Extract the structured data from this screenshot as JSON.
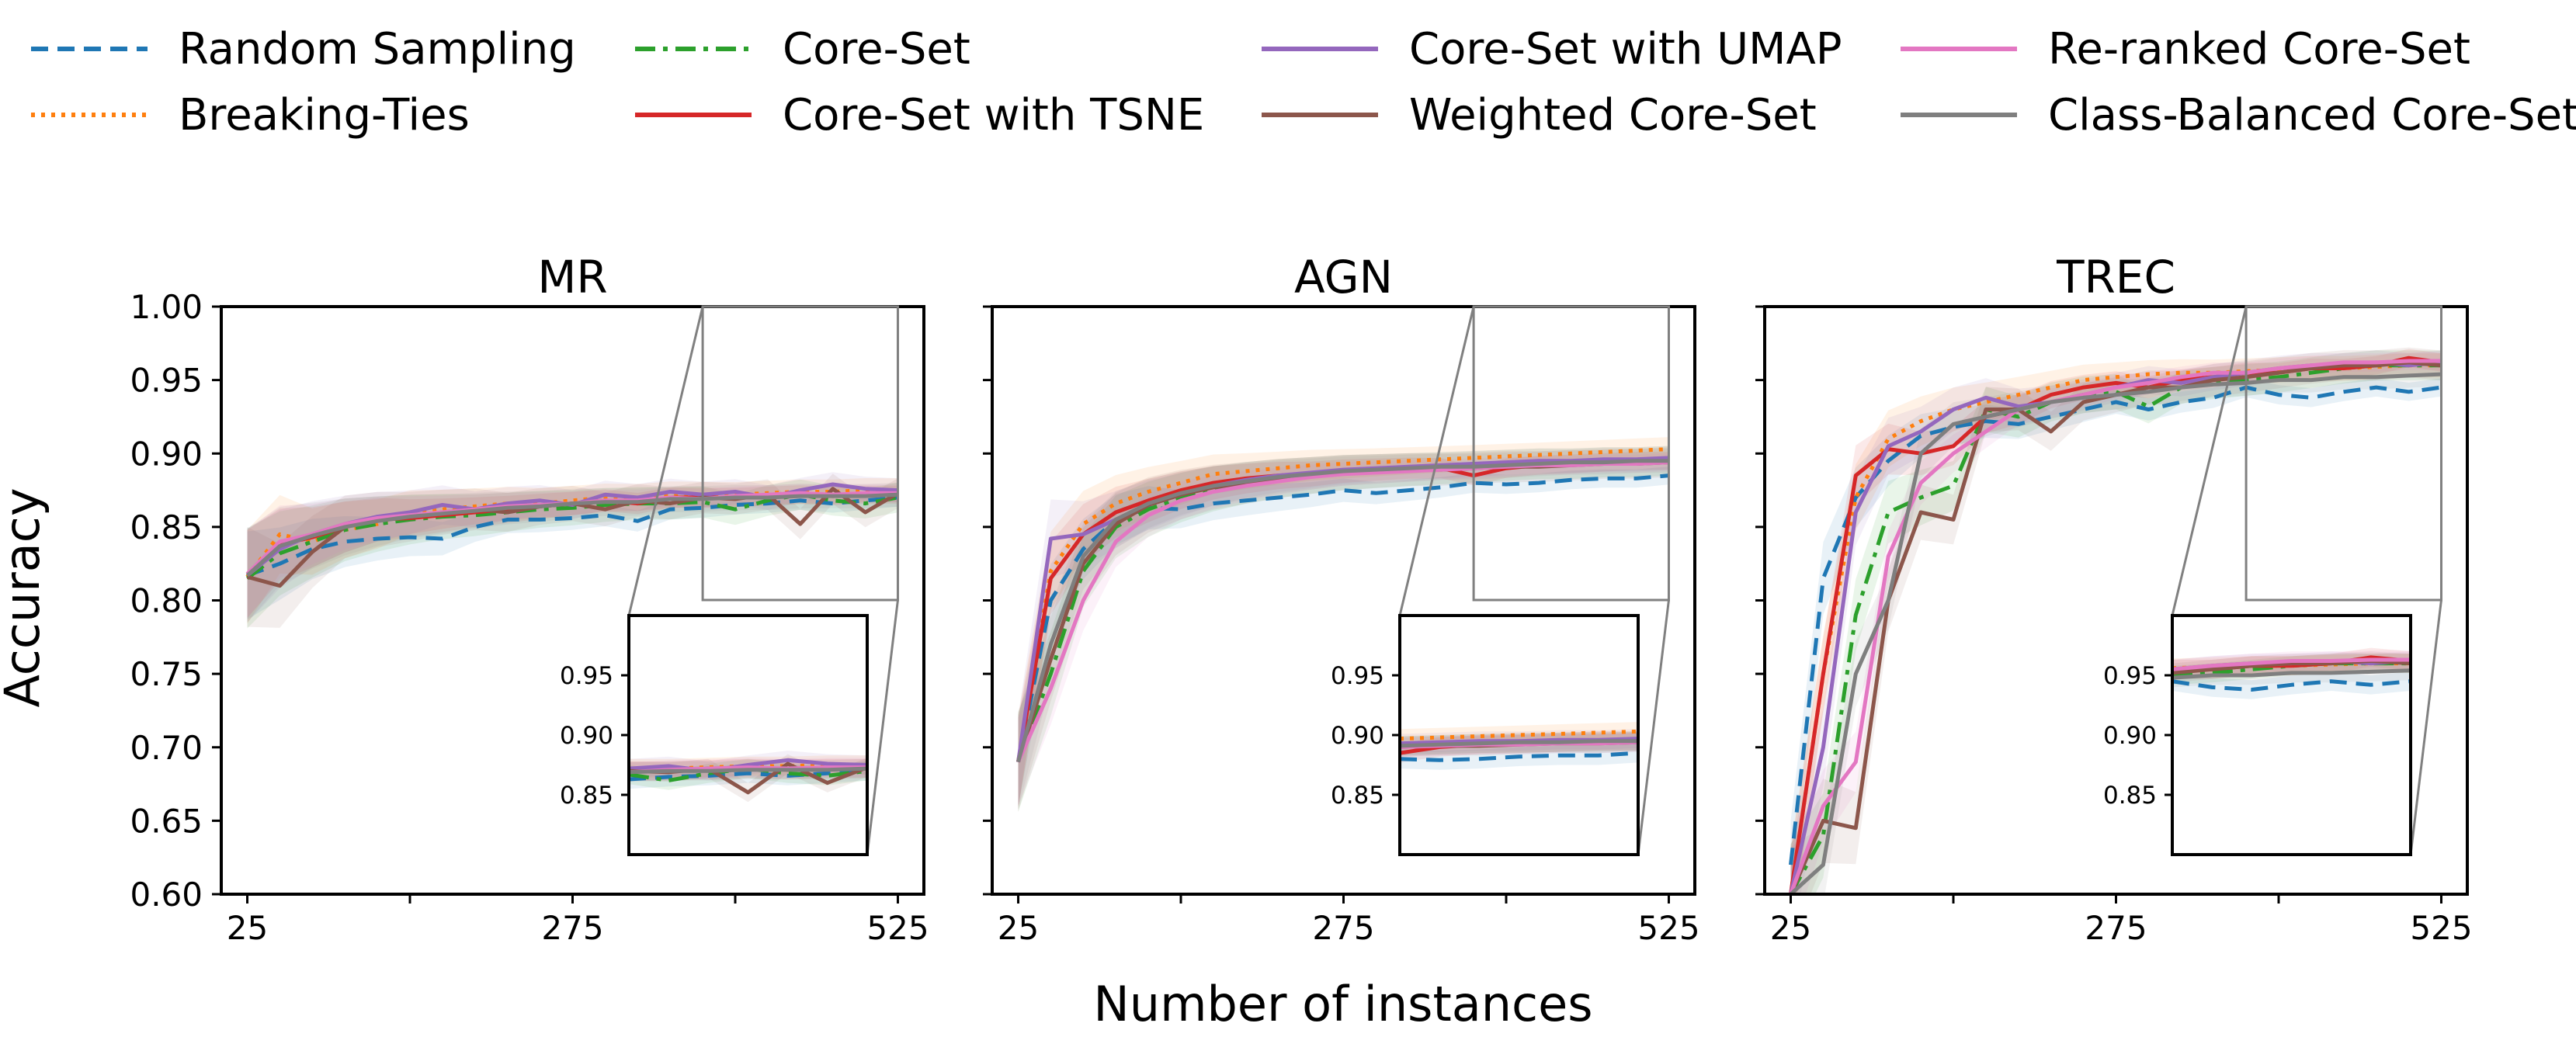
{
  "figure": {
    "xlabel": "Number of instances",
    "ylabel": "Accuracy"
  },
  "legend": {
    "placement": "top",
    "entries": [
      {
        "name": "Random Sampling",
        "color": "#1f77b4",
        "style": "dashed"
      },
      {
        "name": "Breaking-Ties",
        "color": "#ff7f0e",
        "style": "dotted"
      },
      {
        "name": "Core-Set",
        "color": "#2ca02c",
        "style": "dashdot"
      },
      {
        "name": "Core-Set with TSNE",
        "color": "#d62728",
        "style": "solid"
      },
      {
        "name": "Core-Set with UMAP",
        "color": "#9467bd",
        "style": "solid"
      },
      {
        "name": "Weighted Core-Set",
        "color": "#8c564b",
        "style": "solid"
      },
      {
        "name": "Re-ranked Core-Set",
        "color": "#e377c2",
        "style": "solid"
      },
      {
        "name": "Class-Balanced Core-Set",
        "color": "#7f7f7f",
        "style": "solid"
      }
    ]
  },
  "chart_data": [
    {
      "type": "line",
      "title": "MR",
      "xlim": [
        25,
        525
      ],
      "ylim": [
        0.6,
        1.0
      ],
      "xticks": [
        25,
        275,
        525
      ],
      "yticks": [
        0.6,
        0.65,
        0.7,
        0.75,
        0.8,
        0.85,
        0.9,
        0.95,
        1.0
      ],
      "ytick_labels": [
        "0.60",
        "0.65",
        "0.70",
        "0.75",
        "0.80",
        "0.85",
        "0.90",
        "0.95",
        "1.00"
      ],
      "x": [
        25,
        50,
        75,
        100,
        125,
        150,
        175,
        200,
        225,
        250,
        275,
        300,
        325,
        350,
        375,
        400,
        425,
        450,
        475,
        500,
        525
      ],
      "series": [
        {
          "name": "Random Sampling",
          "values": [
            0.817,
            0.825,
            0.835,
            0.84,
            0.842,
            0.843,
            0.842,
            0.85,
            0.855,
            0.855,
            0.856,
            0.858,
            0.854,
            0.862,
            0.863,
            0.865,
            0.866,
            0.868,
            0.866,
            0.868,
            0.87
          ]
        },
        {
          "name": "Breaking-Ties",
          "values": [
            0.816,
            0.845,
            0.84,
            0.848,
            0.852,
            0.86,
            0.862,
            0.864,
            0.866,
            0.866,
            0.868,
            0.87,
            0.87,
            0.872,
            0.872,
            0.872,
            0.873,
            0.874,
            0.874,
            0.875,
            0.875
          ]
        },
        {
          "name": "Core-Set",
          "values": [
            0.815,
            0.832,
            0.84,
            0.848,
            0.852,
            0.855,
            0.857,
            0.858,
            0.86,
            0.862,
            0.863,
            0.865,
            0.866,
            0.866,
            0.867,
            0.862,
            0.868,
            0.872,
            0.868,
            0.866,
            0.87
          ]
        },
        {
          "name": "Core-Set with TSNE",
          "values": [
            0.818,
            0.838,
            0.843,
            0.85,
            0.855,
            0.856,
            0.858,
            0.86,
            0.862,
            0.864,
            0.866,
            0.868,
            0.866,
            0.87,
            0.87,
            0.87,
            0.871,
            0.872,
            0.871,
            0.872,
            0.872
          ]
        },
        {
          "name": "Core-Set with UMAP",
          "values": [
            0.817,
            0.835,
            0.845,
            0.852,
            0.857,
            0.86,
            0.865,
            0.862,
            0.866,
            0.868,
            0.865,
            0.872,
            0.87,
            0.874,
            0.872,
            0.874,
            0.87,
            0.875,
            0.879,
            0.876,
            0.875
          ]
        },
        {
          "name": "Weighted Core-Set",
          "values": [
            0.816,
            0.81,
            0.833,
            0.85,
            0.855,
            0.857,
            0.86,
            0.862,
            0.86,
            0.864,
            0.866,
            0.862,
            0.868,
            0.866,
            0.87,
            0.869,
            0.872,
            0.852,
            0.876,
            0.86,
            0.873
          ]
        },
        {
          "name": "Re-ranked Core-Set",
          "values": [
            0.818,
            0.84,
            0.845,
            0.852,
            0.856,
            0.858,
            0.86,
            0.862,
            0.864,
            0.865,
            0.866,
            0.868,
            0.868,
            0.87,
            0.869,
            0.871,
            0.872,
            0.873,
            0.872,
            0.873,
            0.873
          ]
        },
        {
          "name": "Class-Balanced Core-Set",
          "values": [
            0.817,
            0.837,
            0.844,
            0.85,
            0.854,
            0.857,
            0.859,
            0.861,
            0.863,
            0.864,
            0.866,
            0.867,
            0.867,
            0.869,
            0.869,
            0.87,
            0.87,
            0.871,
            0.871,
            0.871,
            0.872
          ]
        }
      ],
      "inset": {
        "xlim": [
          375,
          525
        ],
        "ylim": [
          0.8,
          1.0
        ],
        "yticks": [
          0.85,
          0.9,
          0.95
        ],
        "ytick_labels": [
          "0.85",
          "0.90",
          "0.95"
        ]
      }
    },
    {
      "type": "line",
      "title": "AGN",
      "xlim": [
        25,
        525
      ],
      "ylim": [
        0.6,
        1.0
      ],
      "xticks": [
        25,
        275,
        525
      ],
      "yticks": [
        0.6,
        0.65,
        0.7,
        0.75,
        0.8,
        0.85,
        0.9,
        0.95,
        1.0
      ],
      "ytick_labels": [],
      "x": [
        25,
        50,
        75,
        100,
        125,
        150,
        175,
        200,
        225,
        250,
        275,
        300,
        325,
        350,
        375,
        400,
        425,
        450,
        475,
        500,
        525
      ],
      "series": [
        {
          "name": "Random Sampling",
          "values": [
            0.69,
            0.8,
            0.835,
            0.855,
            0.863,
            0.862,
            0.866,
            0.868,
            0.87,
            0.872,
            0.875,
            0.873,
            0.875,
            0.877,
            0.88,
            0.879,
            0.88,
            0.882,
            0.883,
            0.883,
            0.885
          ]
        },
        {
          "name": "Breaking-Ties",
          "values": [
            0.69,
            0.82,
            0.852,
            0.866,
            0.874,
            0.88,
            0.886,
            0.888,
            0.89,
            0.892,
            0.893,
            0.894,
            0.895,
            0.896,
            0.897,
            0.898,
            0.899,
            0.9,
            0.901,
            0.902,
            0.903
          ]
        },
        {
          "name": "Core-Set",
          "values": [
            0.69,
            0.75,
            0.82,
            0.85,
            0.862,
            0.87,
            0.876,
            0.88,
            0.883,
            0.885,
            0.887,
            0.888,
            0.889,
            0.89,
            0.891,
            0.892,
            0.893,
            0.893,
            0.894,
            0.894,
            0.895
          ]
        },
        {
          "name": "Core-Set with TSNE",
          "values": [
            0.69,
            0.815,
            0.845,
            0.86,
            0.868,
            0.875,
            0.88,
            0.883,
            0.885,
            0.886,
            0.888,
            0.889,
            0.89,
            0.89,
            0.885,
            0.89,
            0.892,
            0.893,
            0.894,
            0.895,
            0.895
          ]
        },
        {
          "name": "Core-Set with UMAP",
          "values": [
            0.69,
            0.842,
            0.845,
            0.855,
            0.865,
            0.872,
            0.878,
            0.882,
            0.885,
            0.887,
            0.889,
            0.89,
            0.891,
            0.892,
            0.893,
            0.894,
            0.895,
            0.895,
            0.896,
            0.896,
            0.897
          ]
        },
        {
          "name": "Weighted Core-Set",
          "values": [
            0.69,
            0.76,
            0.825,
            0.852,
            0.865,
            0.872,
            0.877,
            0.88,
            0.883,
            0.885,
            0.887,
            0.888,
            0.889,
            0.889,
            0.89,
            0.891,
            0.891,
            0.892,
            0.893,
            0.893,
            0.894
          ]
        },
        {
          "name": "Re-ranked Core-Set",
          "values": [
            0.69,
            0.74,
            0.8,
            0.84,
            0.858,
            0.868,
            0.874,
            0.878,
            0.881,
            0.884,
            0.886,
            0.887,
            0.888,
            0.889,
            0.89,
            0.891,
            0.892,
            0.892,
            0.893,
            0.893,
            0.894
          ]
        },
        {
          "name": "Class-Balanced Core-Set",
          "values": [
            0.69,
            0.77,
            0.83,
            0.855,
            0.866,
            0.873,
            0.878,
            0.881,
            0.884,
            0.886,
            0.888,
            0.889,
            0.89,
            0.891,
            0.891,
            0.892,
            0.893,
            0.894,
            0.894,
            0.895,
            0.895
          ]
        }
      ],
      "inset": {
        "xlim": [
          375,
          525
        ],
        "ylim": [
          0.8,
          1.0
        ],
        "yticks": [
          0.85,
          0.9,
          0.95
        ],
        "ytick_labels": [
          "0.85",
          "0.90",
          "0.95"
        ]
      }
    },
    {
      "type": "line",
      "title": "TREC",
      "xlim": [
        25,
        525
      ],
      "ylim": [
        0.6,
        1.0
      ],
      "xticks": [
        25,
        275,
        525
      ],
      "yticks": [
        0.6,
        0.65,
        0.7,
        0.75,
        0.8,
        0.85,
        0.9,
        0.95,
        1.0
      ],
      "ytick_labels": [],
      "x": [
        25,
        50,
        75,
        100,
        125,
        150,
        175,
        200,
        225,
        250,
        275,
        300,
        325,
        350,
        375,
        400,
        425,
        450,
        475,
        500,
        525
      ],
      "series": [
        {
          "name": "Random Sampling",
          "values": [
            0.62,
            0.815,
            0.87,
            0.895,
            0.912,
            0.918,
            0.922,
            0.92,
            0.925,
            0.93,
            0.935,
            0.93,
            0.935,
            0.938,
            0.945,
            0.94,
            0.938,
            0.942,
            0.945,
            0.942,
            0.945
          ]
        },
        {
          "name": "Breaking-Ties",
          "values": [
            0.6,
            0.75,
            0.87,
            0.91,
            0.922,
            0.93,
            0.935,
            0.94,
            0.945,
            0.95,
            0.952,
            0.954,
            0.955,
            0.955,
            0.956,
            0.957,
            0.958,
            0.958,
            0.959,
            0.96,
            0.96
          ]
        },
        {
          "name": "Core-Set",
          "values": [
            0.6,
            0.64,
            0.79,
            0.86,
            0.87,
            0.878,
            0.93,
            0.925,
            0.935,
            0.94,
            0.942,
            0.932,
            0.945,
            0.948,
            0.95,
            0.952,
            0.955,
            0.958,
            0.96,
            0.96,
            0.96
          ]
        },
        {
          "name": "Core-Set with TSNE",
          "values": [
            0.6,
            0.75,
            0.885,
            0.903,
            0.9,
            0.905,
            0.925,
            0.93,
            0.94,
            0.945,
            0.948,
            0.945,
            0.95,
            0.952,
            0.955,
            0.955,
            0.958,
            0.958,
            0.96,
            0.965,
            0.962
          ]
        },
        {
          "name": "Core-Set with UMAP",
          "values": [
            0.6,
            0.7,
            0.86,
            0.905,
            0.915,
            0.93,
            0.938,
            0.932,
            0.935,
            0.94,
            0.945,
            0.95,
            0.948,
            0.952,
            0.955,
            0.958,
            0.96,
            0.96,
            0.962,
            0.96,
            0.962
          ]
        },
        {
          "name": "Weighted Core-Set",
          "values": [
            0.6,
            0.65,
            0.645,
            0.8,
            0.86,
            0.855,
            0.93,
            0.93,
            0.915,
            0.935,
            0.94,
            0.945,
            0.945,
            0.95,
            0.952,
            0.955,
            0.958,
            0.96,
            0.96,
            0.962,
            0.96
          ]
        },
        {
          "name": "Re-ranked Core-Set",
          "values": [
            0.6,
            0.66,
            0.69,
            0.83,
            0.88,
            0.9,
            0.915,
            0.93,
            0.935,
            0.94,
            0.945,
            0.948,
            0.952,
            0.955,
            0.955,
            0.958,
            0.96,
            0.962,
            0.962,
            0.963,
            0.963
          ]
        },
        {
          "name": "Class-Balanced Core-Set",
          "values": [
            0.6,
            0.62,
            0.75,
            0.8,
            0.9,
            0.92,
            0.925,
            0.93,
            0.935,
            0.938,
            0.94,
            0.942,
            0.945,
            0.947,
            0.948,
            0.95,
            0.95,
            0.952,
            0.952,
            0.953,
            0.954
          ]
        }
      ],
      "inset": {
        "xlim": [
          375,
          525
        ],
        "ylim": [
          0.8,
          1.0
        ],
        "yticks": [
          0.85,
          0.9,
          0.95
        ],
        "ytick_labels": [
          "0.85",
          "0.90",
          "0.95"
        ]
      }
    }
  ]
}
